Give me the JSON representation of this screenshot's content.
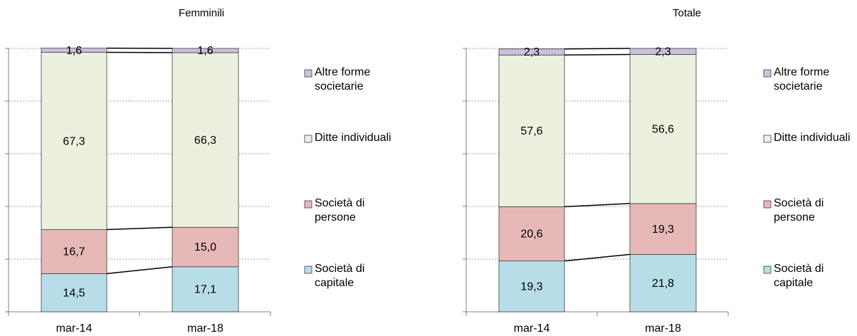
{
  "chart_data": [
    {
      "type": "bar",
      "stacked": true,
      "title": "Femminili",
      "categories": [
        "mar-14",
        "mar-18"
      ],
      "series": [
        {
          "name": "Società di capitale",
          "color": "#b7dde8",
          "values": [
            14.5,
            17.1
          ],
          "value_labels": [
            "14,5",
            "17,1"
          ]
        },
        {
          "name": "Società di persone",
          "color": "#e6b9b8",
          "values": [
            16.7,
            15.0
          ],
          "value_labels": [
            "16,7",
            "15,0"
          ]
        },
        {
          "name": "Ditte individuali",
          "color": "#ebf1de",
          "values": [
            67.3,
            66.3
          ],
          "value_labels": [
            "67,3",
            "66,3"
          ]
        },
        {
          "name": "Altre forme societarie",
          "color": "#ccc0da",
          "values": [
            1.6,
            1.6
          ],
          "value_labels": [
            "1,6",
            "1,6"
          ]
        }
      ],
      "ylim": [
        0,
        100
      ],
      "yticks": [
        0,
        20,
        40,
        60,
        80,
        100
      ],
      "grid": true,
      "legend": "right"
    },
    {
      "type": "bar",
      "stacked": true,
      "title": "Totale",
      "categories": [
        "mar-14",
        "mar-18"
      ],
      "series": [
        {
          "name": "Società di capitale",
          "color": "#b7dde8",
          "values": [
            19.3,
            21.8
          ],
          "value_labels": [
            "19,3",
            "21,8"
          ]
        },
        {
          "name": "Società di persone",
          "color": "#e6b9b8",
          "values": [
            20.6,
            19.3
          ],
          "value_labels": [
            "20,6",
            "19,3"
          ]
        },
        {
          "name": "Ditte individuali",
          "color": "#ebf1de",
          "values": [
            57.6,
            56.6
          ],
          "value_labels": [
            "57,6",
            "56,6"
          ]
        },
        {
          "name": "Altre forme societarie",
          "color": "#ccc0da",
          "values": [
            2.3,
            2.3
          ],
          "value_labels": [
            "2,3",
            "2,3"
          ]
        }
      ],
      "ylim": [
        0,
        100
      ],
      "yticks": [
        0,
        20,
        40,
        60,
        80,
        100
      ],
      "grid": true,
      "legend": "right"
    }
  ]
}
